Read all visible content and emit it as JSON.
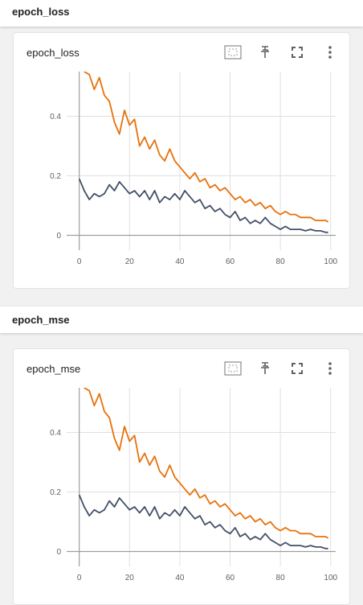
{
  "sections": [
    {
      "title": "epoch_loss",
      "card_title": "epoch_loss",
      "tools": [
        "fit-domain-icon",
        "pin-icon",
        "fullscreen-icon",
        "more-vert-icon"
      ]
    },
    {
      "title": "epoch_mse",
      "card_title": "epoch_mse",
      "tools": [
        "fit-domain-icon",
        "pin-icon",
        "fullscreen-icon",
        "more-vert-icon"
      ]
    }
  ],
  "colors": {
    "train": "#e8710a",
    "validation": "#425066",
    "grid": "#e0e0e0",
    "axis": "#9e9e9e"
  },
  "chart_data": [
    {
      "type": "line",
      "title": "epoch_loss",
      "xlabel": "",
      "ylabel": "",
      "xlim": [
        -5,
        102
      ],
      "ylim": [
        -0.05,
        0.55
      ],
      "x_ticks": [
        "0",
        "20",
        "40",
        "60",
        "80",
        "100"
      ],
      "y_ticks": [
        "0",
        "0.2",
        "0.4"
      ],
      "grid": true,
      "series": [
        {
          "color": "#e8710a",
          "x": [
            0,
            2,
            4,
            6,
            8,
            10,
            12,
            14,
            16,
            18,
            20,
            22,
            24,
            26,
            28,
            30,
            32,
            34,
            36,
            38,
            40,
            42,
            44,
            46,
            48,
            50,
            52,
            54,
            56,
            58,
            60,
            62,
            64,
            66,
            68,
            70,
            72,
            74,
            76,
            78,
            80,
            82,
            84,
            86,
            88,
            90,
            92,
            94,
            96,
            98,
            99
          ],
          "y": [
            0.58,
            0.55,
            0.54,
            0.49,
            0.53,
            0.47,
            0.45,
            0.38,
            0.34,
            0.42,
            0.37,
            0.39,
            0.3,
            0.33,
            0.29,
            0.32,
            0.27,
            0.25,
            0.29,
            0.25,
            0.23,
            0.21,
            0.19,
            0.21,
            0.18,
            0.19,
            0.16,
            0.17,
            0.15,
            0.16,
            0.14,
            0.12,
            0.13,
            0.11,
            0.12,
            0.1,
            0.11,
            0.09,
            0.1,
            0.08,
            0.07,
            0.08,
            0.07,
            0.07,
            0.06,
            0.06,
            0.06,
            0.05,
            0.05,
            0.05,
            0.045
          ]
        },
        {
          "color": "#425066",
          "x": [
            0,
            2,
            4,
            6,
            8,
            10,
            12,
            14,
            16,
            18,
            20,
            22,
            24,
            26,
            28,
            30,
            32,
            34,
            36,
            38,
            40,
            42,
            44,
            46,
            48,
            50,
            52,
            54,
            56,
            58,
            60,
            62,
            64,
            66,
            68,
            70,
            72,
            74,
            76,
            78,
            80,
            82,
            84,
            86,
            88,
            90,
            92,
            94,
            96,
            98,
            99
          ],
          "y": [
            0.19,
            0.15,
            0.12,
            0.14,
            0.13,
            0.14,
            0.17,
            0.15,
            0.18,
            0.16,
            0.14,
            0.15,
            0.13,
            0.15,
            0.12,
            0.15,
            0.11,
            0.13,
            0.12,
            0.14,
            0.12,
            0.15,
            0.13,
            0.11,
            0.12,
            0.09,
            0.1,
            0.08,
            0.09,
            0.07,
            0.06,
            0.08,
            0.05,
            0.06,
            0.04,
            0.05,
            0.04,
            0.06,
            0.04,
            0.03,
            0.02,
            0.03,
            0.02,
            0.02,
            0.02,
            0.015,
            0.02,
            0.015,
            0.015,
            0.01,
            0.01
          ]
        }
      ]
    },
    {
      "type": "line",
      "title": "epoch_mse",
      "xlabel": "",
      "ylabel": "",
      "xlim": [
        -5,
        102
      ],
      "ylim": [
        -0.05,
        0.55
      ],
      "x_ticks": [
        "0",
        "20",
        "40",
        "60",
        "80",
        "100"
      ],
      "y_ticks": [
        "0",
        "0.2",
        "0.4"
      ],
      "grid": true,
      "series": [
        {
          "color": "#e8710a",
          "x": [
            0,
            2,
            4,
            6,
            8,
            10,
            12,
            14,
            16,
            18,
            20,
            22,
            24,
            26,
            28,
            30,
            32,
            34,
            36,
            38,
            40,
            42,
            44,
            46,
            48,
            50,
            52,
            54,
            56,
            58,
            60,
            62,
            64,
            66,
            68,
            70,
            72,
            74,
            76,
            78,
            80,
            82,
            84,
            86,
            88,
            90,
            92,
            94,
            96,
            98,
            99
          ],
          "y": [
            0.58,
            0.55,
            0.54,
            0.49,
            0.53,
            0.47,
            0.45,
            0.38,
            0.34,
            0.42,
            0.37,
            0.39,
            0.3,
            0.33,
            0.29,
            0.32,
            0.27,
            0.25,
            0.29,
            0.25,
            0.23,
            0.21,
            0.19,
            0.21,
            0.18,
            0.19,
            0.16,
            0.17,
            0.15,
            0.16,
            0.14,
            0.12,
            0.13,
            0.11,
            0.12,
            0.1,
            0.11,
            0.09,
            0.1,
            0.08,
            0.07,
            0.08,
            0.07,
            0.07,
            0.06,
            0.06,
            0.06,
            0.05,
            0.05,
            0.05,
            0.045
          ]
        },
        {
          "color": "#425066",
          "x": [
            0,
            2,
            4,
            6,
            8,
            10,
            12,
            14,
            16,
            18,
            20,
            22,
            24,
            26,
            28,
            30,
            32,
            34,
            36,
            38,
            40,
            42,
            44,
            46,
            48,
            50,
            52,
            54,
            56,
            58,
            60,
            62,
            64,
            66,
            68,
            70,
            72,
            74,
            76,
            78,
            80,
            82,
            84,
            86,
            88,
            90,
            92,
            94,
            96,
            98,
            99
          ],
          "y": [
            0.19,
            0.15,
            0.12,
            0.14,
            0.13,
            0.14,
            0.17,
            0.15,
            0.18,
            0.16,
            0.14,
            0.15,
            0.13,
            0.15,
            0.12,
            0.15,
            0.11,
            0.13,
            0.12,
            0.14,
            0.12,
            0.15,
            0.13,
            0.11,
            0.12,
            0.09,
            0.1,
            0.08,
            0.09,
            0.07,
            0.06,
            0.08,
            0.05,
            0.06,
            0.04,
            0.05,
            0.04,
            0.06,
            0.04,
            0.03,
            0.02,
            0.03,
            0.02,
            0.02,
            0.02,
            0.015,
            0.02,
            0.015,
            0.015,
            0.01,
            0.01
          ]
        }
      ]
    }
  ]
}
